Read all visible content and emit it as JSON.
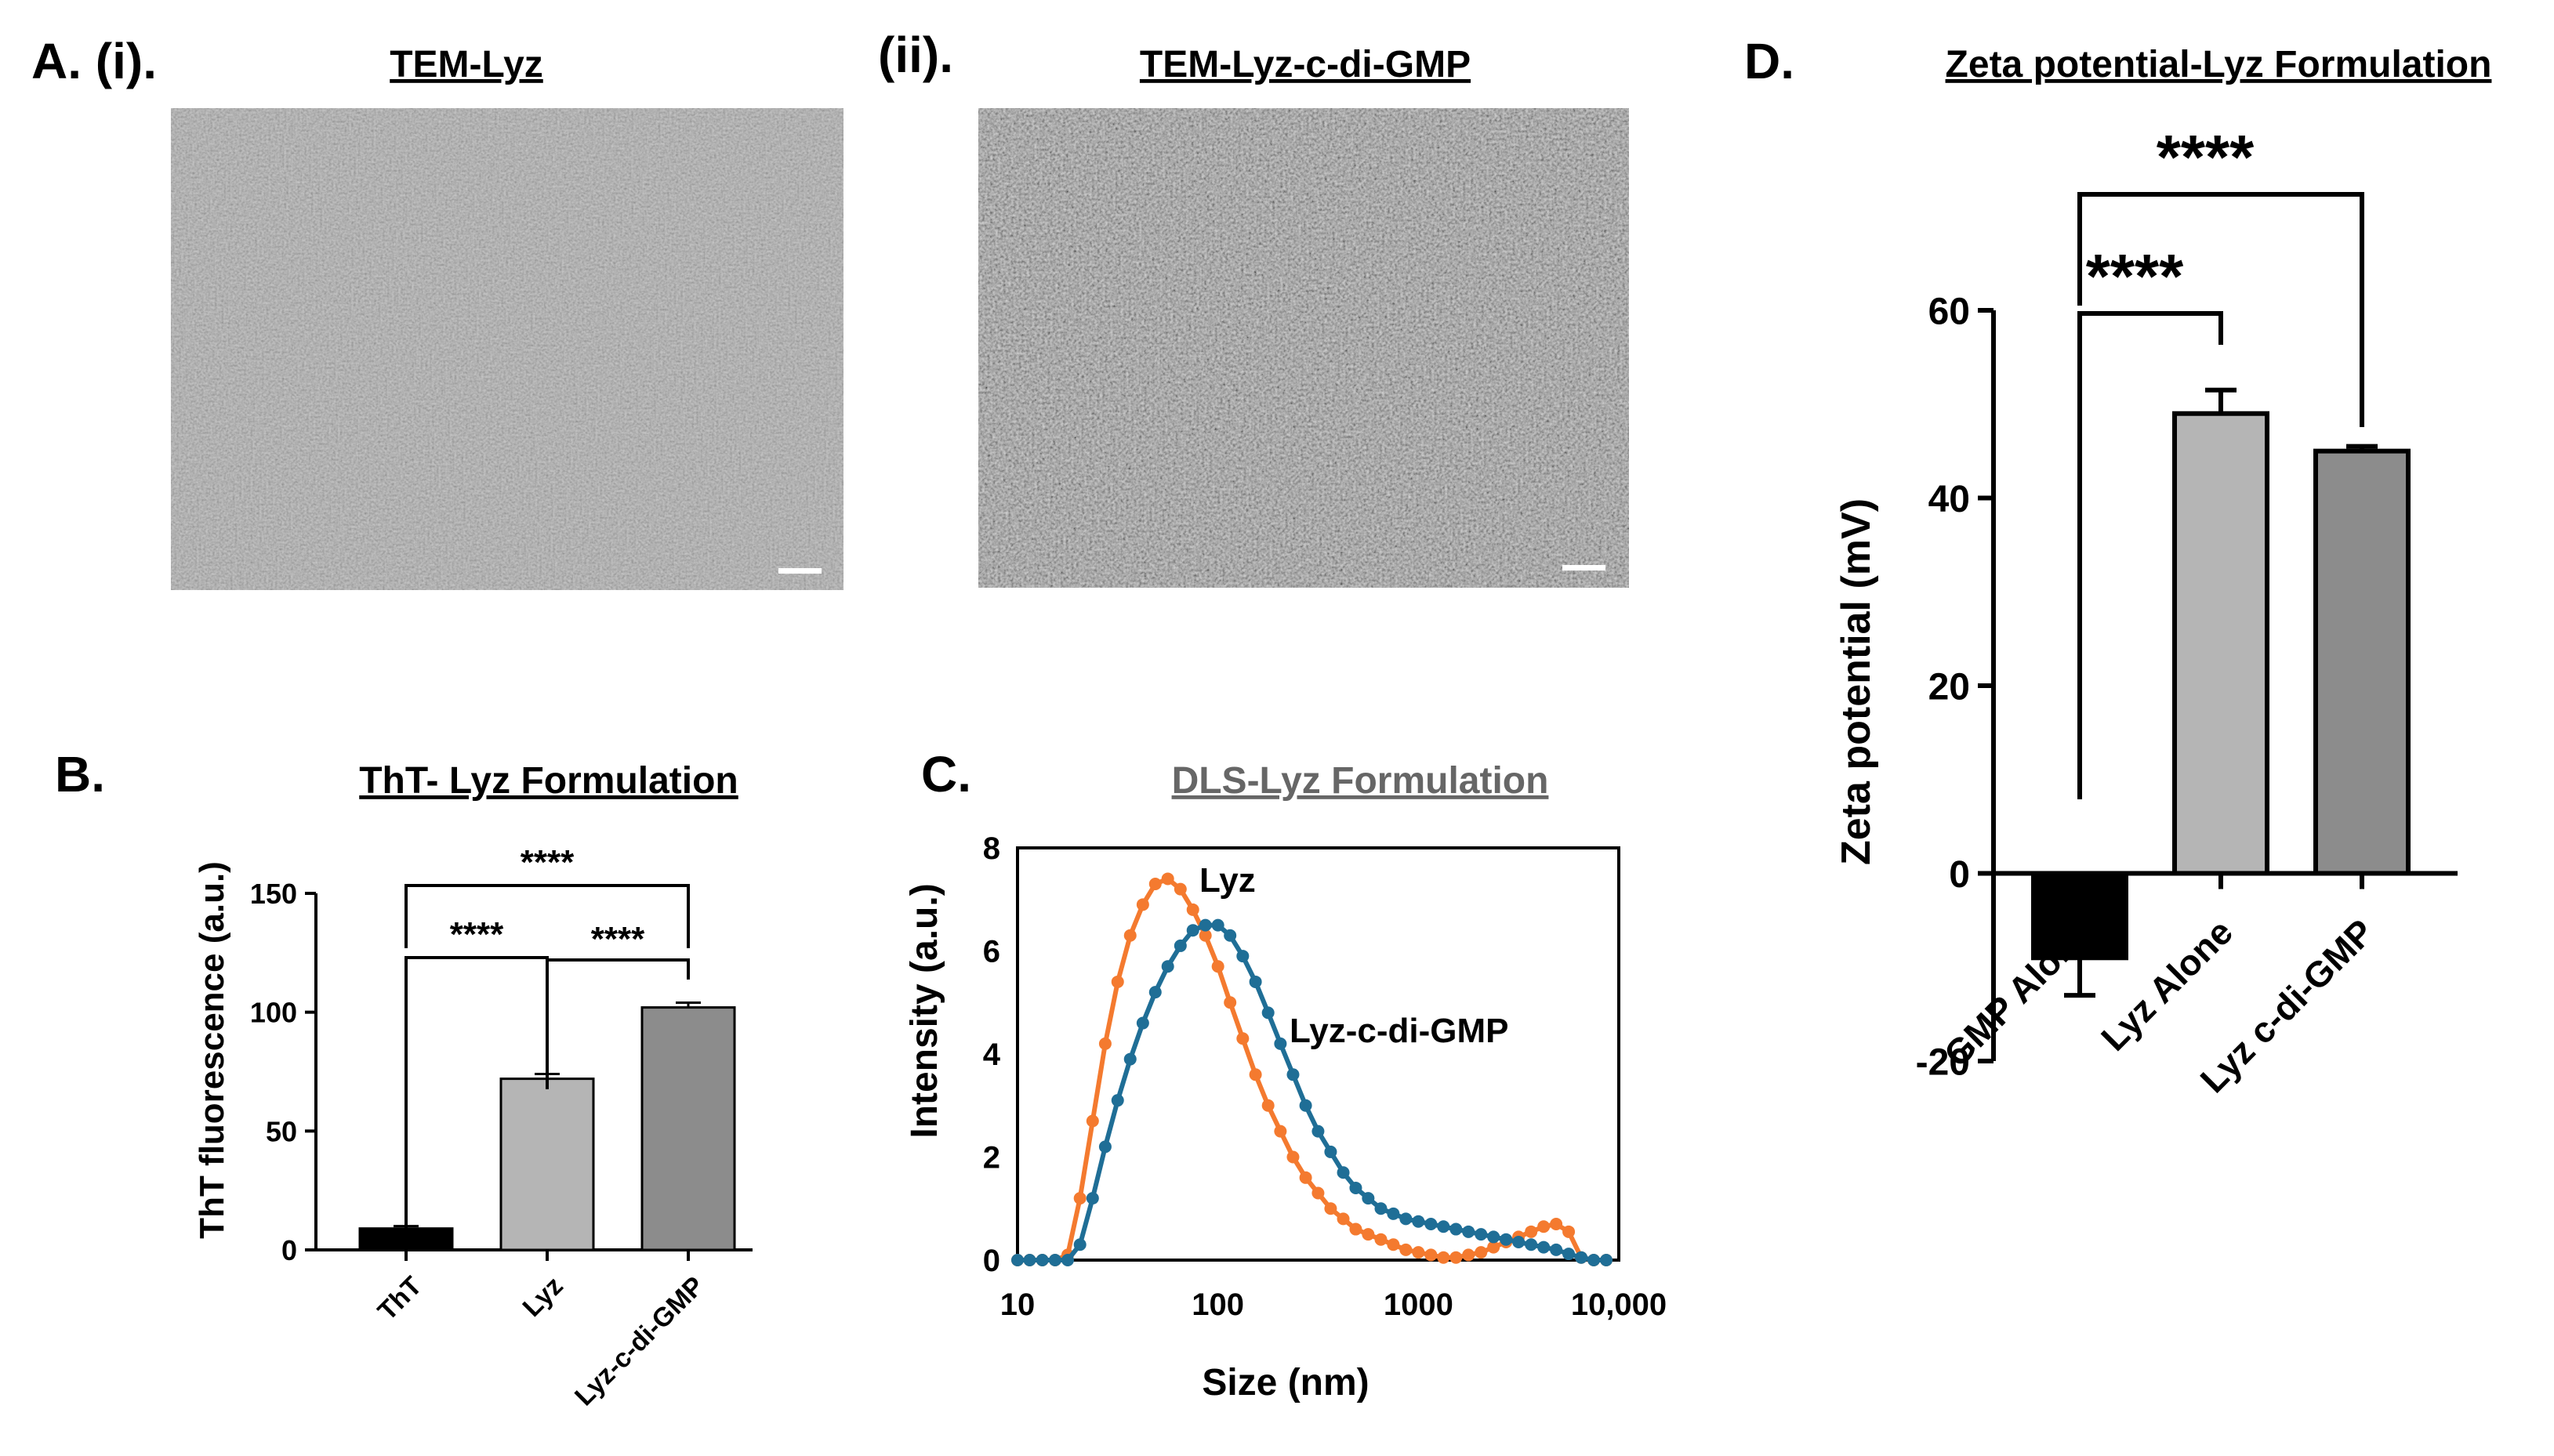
{
  "panel_labels": {
    "A": "A. (i).",
    "A_ii": "(ii).",
    "B": "B.",
    "C": "C.",
    "D": "D."
  },
  "tem": {
    "left_title": "TEM-Lyz",
    "right_title": "TEM-Lyz-c-di-GMP"
  },
  "chart_data": [
    {
      "id": "B",
      "type": "bar",
      "title": "ThT- Lyz Formulation",
      "xlabel": "",
      "ylabel": "ThT fluorescence (a.u.)",
      "ylim": [
        0,
        150
      ],
      "yticks": [
        0,
        50,
        100,
        150
      ],
      "categories": [
        "ThT",
        "Lyz",
        "Lyz-c-di-GMP"
      ],
      "values": [
        9,
        72,
        102
      ],
      "errors": [
        1,
        2,
        2
      ],
      "colors": [
        "#000000",
        "#b5b5b5",
        "#8c8c8c"
      ],
      "significance": [
        {
          "pair": [
            1,
            2
          ],
          "label": "****"
        },
        {
          "pair": [
            0,
            1
          ],
          "label": "****"
        },
        {
          "pair": [
            0,
            2
          ],
          "label": "****"
        }
      ]
    },
    {
      "id": "C",
      "type": "line",
      "title": "DLS-Lyz Formulation",
      "xlabel": "Size (nm)",
      "ylabel": "Intensity (a.u.)",
      "xscale": "log",
      "xlim": [
        10,
        10000
      ],
      "ylim": [
        0,
        8
      ],
      "xticks": [
        10,
        100,
        1000,
        10000
      ],
      "xtick_labels": [
        "10",
        "100",
        "1000",
        "10,000"
      ],
      "yticks": [
        0,
        2,
        4,
        6,
        8
      ],
      "series": [
        {
          "name": "Lyz",
          "color": "#f47a2f",
          "x": [
            10,
            11.5,
            13.3,
            15.4,
            17.8,
            20.5,
            23.7,
            27.4,
            31.6,
            36.5,
            42.2,
            48.7,
            56.2,
            65,
            75,
            86.6,
            100,
            115,
            133,
            154,
            178,
            205,
            237,
            274,
            316,
            365,
            422,
            487,
            562,
            650,
            750,
            866,
            1000,
            1155,
            1334,
            1540,
            1778,
            2054,
            2371,
            2738,
            3162,
            3652,
            4217,
            4870,
            5623,
            6494,
            7499,
            8660
          ],
          "y": [
            0,
            0,
            0,
            0,
            0.1,
            1.2,
            2.7,
            4.2,
            5.4,
            6.3,
            6.9,
            7.3,
            7.4,
            7.2,
            6.8,
            6.3,
            5.7,
            5.0,
            4.3,
            3.6,
            3.0,
            2.5,
            2.0,
            1.6,
            1.3,
            1.0,
            0.8,
            0.6,
            0.5,
            0.4,
            0.3,
            0.2,
            0.15,
            0.1,
            0.05,
            0.05,
            0.1,
            0.15,
            0.25,
            0.35,
            0.45,
            0.55,
            0.65,
            0.7,
            0.55,
            0.05,
            0,
            0
          ]
        },
        {
          "name": "Lyz-c-di-GMP",
          "color": "#1f6e96",
          "x": [
            10,
            11.5,
            13.3,
            15.4,
            17.8,
            20.5,
            23.7,
            27.4,
            31.6,
            36.5,
            42.2,
            48.7,
            56.2,
            65,
            75,
            86.6,
            100,
            115,
            133,
            154,
            178,
            205,
            237,
            274,
            316,
            365,
            422,
            487,
            562,
            650,
            750,
            866,
            1000,
            1155,
            1334,
            1540,
            1778,
            2054,
            2371,
            2738,
            3162,
            3652,
            4217,
            4870,
            5623,
            6494,
            7499,
            8660
          ],
          "y": [
            0,
            0,
            0,
            0,
            0,
            0.3,
            1.2,
            2.2,
            3.1,
            3.9,
            4.6,
            5.2,
            5.7,
            6.1,
            6.4,
            6.5,
            6.5,
            6.3,
            5.9,
            5.4,
            4.8,
            4.2,
            3.6,
            3.0,
            2.5,
            2.1,
            1.7,
            1.4,
            1.2,
            1.0,
            0.9,
            0.8,
            0.75,
            0.7,
            0.65,
            0.6,
            0.55,
            0.5,
            0.45,
            0.4,
            0.35,
            0.3,
            0.25,
            0.2,
            0.12,
            0.05,
            0,
            0
          ]
        }
      ]
    },
    {
      "id": "D",
      "type": "bar",
      "title": "Zeta potential-Lyz Formulation",
      "xlabel": "",
      "ylabel": "Zeta potential (mV)",
      "ylim": [
        -20,
        60
      ],
      "yticks": [
        -20,
        0,
        20,
        40,
        60
      ],
      "categories": [
        "GMP Alone",
        "Lyz Alone",
        "Lyz c-di-GMP"
      ],
      "values": [
        -9,
        49,
        45
      ],
      "errors": [
        4,
        2.5,
        0.5
      ],
      "colors": [
        "#000000",
        "#b5b5b5",
        "#8c8c8c"
      ],
      "significance": [
        {
          "pair": [
            0,
            1
          ],
          "label": "****"
        },
        {
          "pair": [
            0,
            2
          ],
          "label": "****"
        }
      ]
    }
  ]
}
